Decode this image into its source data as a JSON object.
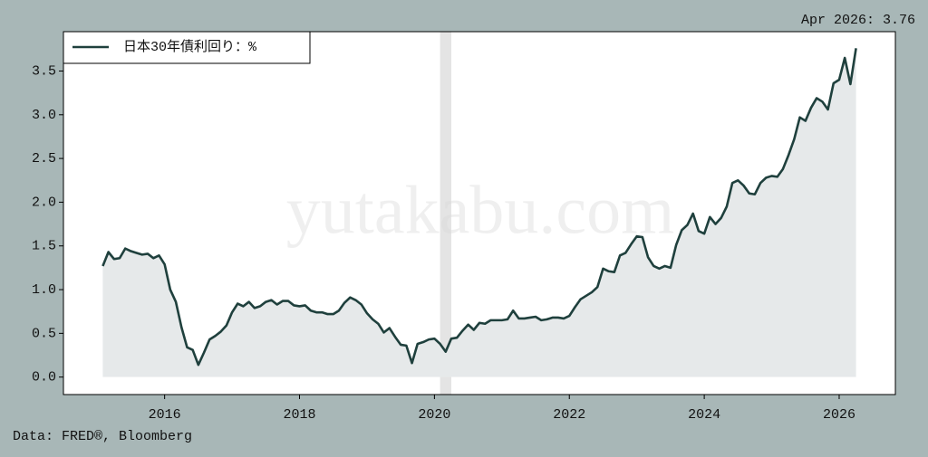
{
  "chart_data": {
    "type": "line",
    "legend_label": "日本30年債利回り：%",
    "annotation": "Apr 2026: 3.76",
    "source": "Data: FRED®, Bloomberg",
    "watermark": "yutakabu.com",
    "legend": "upper left",
    "fill_under": true,
    "shaded_range": [
      "2020-02",
      "2020-04"
    ],
    "xlim": [
      "2014-07",
      "2026-11"
    ],
    "xticks": [
      "2016",
      "2018",
      "2020",
      "2022",
      "2024",
      "2026"
    ],
    "ylim": [
      -0.2,
      3.95
    ],
    "yticks": [
      {
        "value": 0,
        "label": "0.0"
      },
      0.5,
      {
        "value": 1,
        "label": "1.0"
      },
      1.5,
      {
        "value": 2,
        "label": "2.0"
      },
      2.5,
      {
        "value": 3,
        "label": "3.0"
      },
      3.5
    ],
    "x": [
      "2015-02",
      "2015-03",
      "2015-04",
      "2015-05",
      "2015-06",
      "2015-07",
      "2015-08",
      "2015-09",
      "2015-10",
      "2015-11",
      "2015-12",
      "2016-01",
      "2016-02",
      "2016-03",
      "2016-04",
      "2016-05",
      "2016-06",
      "2016-07",
      "2016-08",
      "2016-09",
      "2016-10",
      "2016-11",
      "2016-12",
      "2017-01",
      "2017-02",
      "2017-03",
      "2017-04",
      "2017-05",
      "2017-06",
      "2017-07",
      "2017-08",
      "2017-09",
      "2017-10",
      "2017-11",
      "2017-12",
      "2018-01",
      "2018-02",
      "2018-03",
      "2018-04",
      "2018-05",
      "2018-06",
      "2018-07",
      "2018-08",
      "2018-09",
      "2018-10",
      "2018-11",
      "2018-12",
      "2019-01",
      "2019-02",
      "2019-03",
      "2019-04",
      "2019-05",
      "2019-06",
      "2019-07",
      "2019-08",
      "2019-09",
      "2019-10",
      "2019-11",
      "2019-12",
      "2020-01",
      "2020-02",
      "2020-03",
      "2020-04",
      "2020-05",
      "2020-06",
      "2020-07",
      "2020-08",
      "2020-09",
      "2020-10",
      "2020-11",
      "2020-12",
      "2021-01",
      "2021-02",
      "2021-03",
      "2021-04",
      "2021-05",
      "2021-06",
      "2021-07",
      "2021-08",
      "2021-09",
      "2021-10",
      "2021-11",
      "2021-12",
      "2022-01",
      "2022-02",
      "2022-03",
      "2022-04",
      "2022-05",
      "2022-06",
      "2022-07",
      "2022-08",
      "2022-09",
      "2022-10",
      "2022-11",
      "2022-12",
      "2023-01",
      "2023-02",
      "2023-03",
      "2023-04",
      "2023-05",
      "2023-06",
      "2023-07",
      "2023-08",
      "2023-09",
      "2023-10",
      "2023-11",
      "2023-12",
      "2024-01",
      "2024-02",
      "2024-03",
      "2024-04",
      "2024-05",
      "2024-06",
      "2024-07",
      "2024-08",
      "2024-09",
      "2024-10",
      "2024-11",
      "2024-12",
      "2025-01",
      "2025-02",
      "2025-03",
      "2025-04",
      "2025-05",
      "2025-06",
      "2025-07",
      "2025-08",
      "2025-09",
      "2025-10",
      "2025-11",
      "2025-12",
      "2026-01",
      "2026-02",
      "2026-03",
      "2026-04"
    ],
    "series": [
      {
        "name": "日本30年債利回り：%",
        "color": "#1f403d",
        "fill": "#e6e9ea",
        "values": [
          1.27,
          1.43,
          1.35,
          1.36,
          1.47,
          1.44,
          1.42,
          1.4,
          1.41,
          1.36,
          1.39,
          1.29,
          1.0,
          0.86,
          0.57,
          0.34,
          0.31,
          0.14,
          0.28,
          0.43,
          0.47,
          0.52,
          0.59,
          0.74,
          0.84,
          0.81,
          0.86,
          0.79,
          0.81,
          0.86,
          0.88,
          0.83,
          0.87,
          0.87,
          0.82,
          0.81,
          0.82,
          0.76,
          0.74,
          0.74,
          0.72,
          0.72,
          0.76,
          0.85,
          0.91,
          0.88,
          0.83,
          0.73,
          0.66,
          0.61,
          0.51,
          0.56,
          0.46,
          0.37,
          0.36,
          0.16,
          0.38,
          0.4,
          0.43,
          0.44,
          0.38,
          0.29,
          0.44,
          0.45,
          0.53,
          0.6,
          0.54,
          0.62,
          0.61,
          0.65,
          0.65,
          0.65,
          0.66,
          0.76,
          0.67,
          0.67,
          0.68,
          0.69,
          0.65,
          0.66,
          0.68,
          0.68,
          0.67,
          0.7,
          0.8,
          0.89,
          0.93,
          0.97,
          1.03,
          1.24,
          1.21,
          1.2,
          1.39,
          1.42,
          1.52,
          1.61,
          1.6,
          1.37,
          1.27,
          1.24,
          1.27,
          1.25,
          1.51,
          1.68,
          1.74,
          1.87,
          1.67,
          1.64,
          1.83,
          1.75,
          1.82,
          1.95,
          2.22,
          2.25,
          2.19,
          2.1,
          2.09,
          2.22,
          2.28,
          2.3,
          2.29,
          2.38,
          2.54,
          2.72,
          2.97,
          2.93,
          3.08,
          3.19,
          3.15,
          3.06,
          3.36,
          3.4,
          3.65,
          3.35,
          3.76
        ]
      }
    ]
  }
}
